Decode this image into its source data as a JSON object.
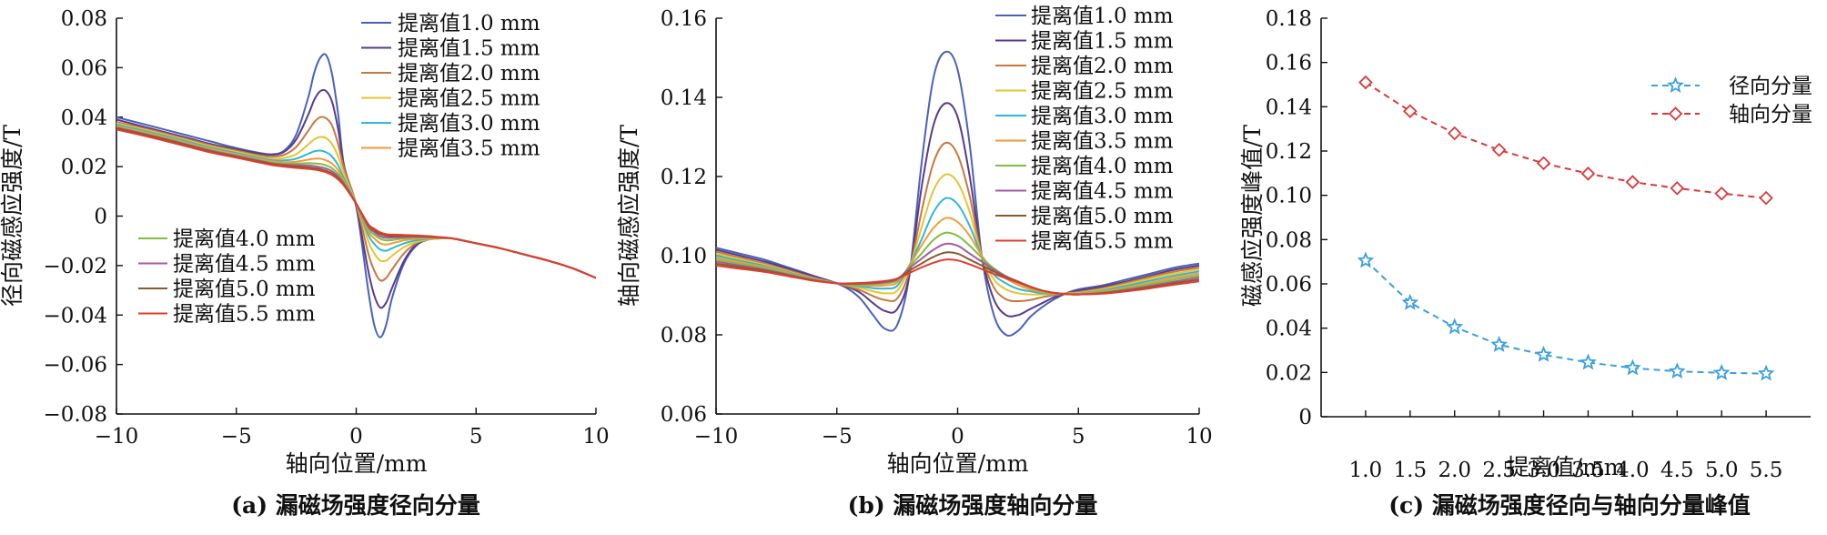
{
  "chart_data": [
    {
      "type": "line",
      "panel": "a",
      "caption": "(a) 漏磁场强度径向分量",
      "xlabel": "轴向位置/mm",
      "ylabel": "径向磁感应强度/T",
      "xlim": [
        -10,
        10
      ],
      "ylim": [
        -0.08,
        0.08
      ],
      "xticks": [
        -10,
        -5,
        0,
        5,
        10
      ],
      "xtick_labels": [
        "−10",
        "−5",
        "0",
        "5",
        "10"
      ],
      "yticks": [
        -0.08,
        -0.06,
        -0.04,
        -0.02,
        0,
        0.02,
        0.04,
        0.06,
        0.08
      ],
      "ytick_labels": [
        "−0.08",
        "−0.06",
        "−0.04",
        "−0.02",
        "0",
        "0.02",
        "0.04",
        "0.06",
        "0.08"
      ],
      "legend_positions": [
        "top-right",
        "lower-left"
      ],
      "grid": false,
      "x": [
        -10,
        -9,
        -8,
        -7,
        -6,
        -5,
        -4,
        -3.5,
        -3,
        -2.5,
        -2,
        -1.75,
        -1.5,
        -1.25,
        -1,
        -0.75,
        -0.5,
        0,
        0.5,
        0.75,
        1,
        1.25,
        1.5,
        2,
        2.5,
        3,
        3.5,
        4,
        5,
        6,
        7,
        8,
        9,
        10
      ],
      "series": [
        {
          "name": "提离值1.0 mm",
          "color": "#4a62b8",
          "values": [
            0.04,
            0.0375,
            0.035,
            0.0325,
            0.03,
            0.0275,
            0.0255,
            0.025,
            0.0265,
            0.033,
            0.048,
            0.058,
            0.064,
            0.065,
            0.057,
            0.041,
            0.02,
            0.004,
            -0.03,
            -0.044,
            -0.049,
            -0.044,
            -0.033,
            -0.019,
            -0.012,
            -0.0095,
            -0.009,
            -0.009,
            -0.011,
            -0.013,
            -0.0155,
            -0.018,
            -0.021,
            -0.025
          ]
        },
        {
          "name": "提离值1.5 mm",
          "color": "#5a3a8c",
          "values": [
            0.039,
            0.0365,
            0.034,
            0.0315,
            0.029,
            0.027,
            0.0252,
            0.0248,
            0.026,
            0.031,
            0.041,
            0.047,
            0.0505,
            0.0505,
            0.046,
            0.035,
            0.02,
            0.004,
            -0.022,
            -0.032,
            -0.037,
            -0.035,
            -0.029,
            -0.018,
            -0.0115,
            -0.0095,
            -0.009,
            -0.009,
            -0.011,
            -0.013,
            -0.0155,
            -0.018,
            -0.021,
            -0.025
          ]
        },
        {
          "name": "提离值2.0 mm",
          "color": "#c8783c",
          "values": [
            0.038,
            0.0358,
            0.0335,
            0.031,
            0.0285,
            0.0265,
            0.0245,
            0.024,
            0.0248,
            0.028,
            0.0345,
            0.038,
            0.04,
            0.0395,
            0.0365,
            0.029,
            0.019,
            0.005,
            -0.015,
            -0.022,
            -0.026,
            -0.025,
            -0.0215,
            -0.015,
            -0.011,
            -0.0095,
            -0.009,
            -0.009,
            -0.011,
            -0.013,
            -0.0155,
            -0.018,
            -0.021,
            -0.025
          ]
        },
        {
          "name": "提离值2.5 mm",
          "color": "#e6c531",
          "values": [
            0.0375,
            0.0353,
            0.033,
            0.0305,
            0.028,
            0.026,
            0.024,
            0.0232,
            0.0235,
            0.025,
            0.029,
            0.031,
            0.032,
            0.0315,
            0.029,
            0.024,
            0.017,
            0.005,
            -0.01,
            -0.015,
            -0.018,
            -0.018,
            -0.016,
            -0.0125,
            -0.0105,
            -0.0095,
            -0.009,
            -0.009,
            -0.011,
            -0.013,
            -0.0155,
            -0.018,
            -0.021,
            -0.025
          ]
        },
        {
          "name": "提离值3.0 mm",
          "color": "#2fb8d2",
          "values": [
            0.037,
            0.0348,
            0.0325,
            0.03,
            0.0275,
            0.0255,
            0.0235,
            0.0226,
            0.0225,
            0.0232,
            0.0252,
            0.0262,
            0.0265,
            0.0258,
            0.024,
            0.0205,
            0.015,
            0.005,
            -0.0075,
            -0.0112,
            -0.0135,
            -0.014,
            -0.013,
            -0.011,
            -0.0098,
            -0.0092,
            -0.009,
            -0.009,
            -0.011,
            -0.013,
            -0.0155,
            -0.018,
            -0.021,
            -0.025
          ]
        },
        {
          "name": "提离值3.5 mm",
          "color": "#f29a3a",
          "values": [
            0.0365,
            0.0343,
            0.032,
            0.0295,
            0.027,
            0.025,
            0.023,
            0.0221,
            0.0218,
            0.022,
            0.0228,
            0.0232,
            0.0232,
            0.0225,
            0.0212,
            0.0185,
            0.014,
            0.005,
            -0.006,
            -0.009,
            -0.011,
            -0.0115,
            -0.011,
            -0.0098,
            -0.0092,
            -0.009,
            -0.009,
            -0.009,
            -0.011,
            -0.013,
            -0.0155,
            -0.018,
            -0.021,
            -0.025
          ]
        },
        {
          "name": "提离值4.0 mm",
          "color": "#7fbf3f",
          "values": [
            0.036,
            0.0338,
            0.0315,
            0.029,
            0.0265,
            0.0245,
            0.0225,
            0.0216,
            0.0212,
            0.0212,
            0.0214,
            0.0213,
            0.0211,
            0.0205,
            0.0193,
            0.017,
            0.0135,
            0.005,
            -0.005,
            -0.0075,
            -0.0092,
            -0.0098,
            -0.0097,
            -0.009,
            -0.0087,
            -0.0087,
            -0.0088,
            -0.009,
            -0.011,
            -0.013,
            -0.0155,
            -0.018,
            -0.021,
            -0.025
          ]
        },
        {
          "name": "提离值4.5 mm",
          "color": "#a65a9e",
          "values": [
            0.0358,
            0.0336,
            0.0313,
            0.0288,
            0.0263,
            0.0243,
            0.0223,
            0.0213,
            0.0208,
            0.0206,
            0.0205,
            0.0202,
            0.0198,
            0.0192,
            0.0181,
            0.016,
            0.013,
            0.005,
            -0.0042,
            -0.0065,
            -0.0082,
            -0.0088,
            -0.0088,
            -0.0085,
            -0.0084,
            -0.0085,
            -0.0087,
            -0.009,
            -0.011,
            -0.013,
            -0.0155,
            -0.018,
            -0.021,
            -0.025
          ]
        },
        {
          "name": "提离值5.0 mm",
          "color": "#8b5a2b",
          "values": [
            0.0355,
            0.0333,
            0.031,
            0.0285,
            0.026,
            0.024,
            0.022,
            0.021,
            0.0204,
            0.02,
            0.0197,
            0.0194,
            0.019,
            0.0183,
            0.0172,
            0.0153,
            0.0125,
            0.005,
            -0.0036,
            -0.0057,
            -0.0073,
            -0.008,
            -0.0081,
            -0.008,
            -0.0081,
            -0.0083,
            -0.0086,
            -0.009,
            -0.011,
            -0.013,
            -0.0155,
            -0.018,
            -0.021,
            -0.025
          ]
        },
        {
          "name": "提离值5.5 mm",
          "color": "#e03c2e",
          "values": [
            0.035,
            0.0328,
            0.0305,
            0.028,
            0.0256,
            0.0236,
            0.0216,
            0.0206,
            0.02,
            0.0195,
            0.0191,
            0.0188,
            0.0184,
            0.0177,
            0.0166,
            0.0148,
            0.0122,
            0.005,
            -0.0032,
            -0.0051,
            -0.0066,
            -0.0073,
            -0.0075,
            -0.0076,
            -0.0078,
            -0.0081,
            -0.0085,
            -0.009,
            -0.011,
            -0.013,
            -0.0155,
            -0.018,
            -0.021,
            -0.025
          ]
        }
      ]
    },
    {
      "type": "line",
      "panel": "b",
      "caption": "(b) 漏磁场强度轴向分量",
      "xlabel": "轴向位置/mm",
      "ylabel": "轴向磁感应强度/T",
      "xlim": [
        -10,
        10
      ],
      "ylim": [
        0.06,
        0.16
      ],
      "xticks": [
        -10,
        -5,
        0,
        5,
        10
      ],
      "xtick_labels": [
        "−10",
        "−5",
        "0",
        "5",
        "10"
      ],
      "yticks": [
        0.06,
        0.08,
        0.1,
        0.12,
        0.14,
        0.16
      ],
      "ytick_labels": [
        "0.06",
        "0.08",
        "0.10",
        "0.12",
        "0.14",
        "0.16"
      ],
      "legend_position": "top-right",
      "grid": false,
      "x": [
        -10,
        -9,
        -8,
        -7,
        -6,
        -5,
        -4.5,
        -4,
        -3.5,
        -3,
        -2.5,
        -2,
        -1.5,
        -1,
        -0.5,
        0,
        0.5,
        1,
        1.5,
        2,
        2.5,
        3,
        3.5,
        4,
        4.5,
        5,
        6,
        7,
        8,
        9,
        10
      ],
      "series": [
        {
          "name": "提离值1.0 mm",
          "color": "#4a62b8",
          "values": [
            0.102,
            0.1005,
            0.099,
            0.097,
            0.095,
            0.093,
            0.0915,
            0.089,
            0.085,
            0.0815,
            0.0825,
            0.095,
            0.123,
            0.145,
            0.1515,
            0.147,
            0.128,
            0.1,
            0.085,
            0.08,
            0.081,
            0.0845,
            0.087,
            0.089,
            0.0905,
            0.0915,
            0.0925,
            0.094,
            0.0955,
            0.097,
            0.098
          ]
        },
        {
          "name": "提离值1.5 mm",
          "color": "#5a3a8c",
          "values": [
            0.1015,
            0.1,
            0.0985,
            0.0967,
            0.0948,
            0.093,
            0.092,
            0.0905,
            0.088,
            0.086,
            0.0865,
            0.095,
            0.117,
            0.133,
            0.1385,
            0.135,
            0.12,
            0.1,
            0.089,
            0.085,
            0.085,
            0.0865,
            0.088,
            0.0895,
            0.0905,
            0.0912,
            0.0922,
            0.0935,
            0.095,
            0.0965,
            0.0975
          ]
        },
        {
          "name": "提离值2.0 mm",
          "color": "#c8783c",
          "values": [
            0.101,
            0.0995,
            0.098,
            0.0963,
            0.0945,
            0.093,
            0.0922,
            0.0912,
            0.0898,
            0.0888,
            0.0892,
            0.096,
            0.111,
            0.1235,
            0.1285,
            0.1255,
            0.115,
            0.1,
            0.092,
            0.089,
            0.0885,
            0.0888,
            0.0895,
            0.09,
            0.0905,
            0.0908,
            0.0918,
            0.0932,
            0.0947,
            0.096,
            0.097
          ]
        },
        {
          "name": "提离值2.5 mm",
          "color": "#e6c531",
          "values": [
            0.1005,
            0.0991,
            0.0977,
            0.096,
            0.0943,
            0.093,
            0.0925,
            0.0918,
            0.091,
            0.0905,
            0.0912,
            0.097,
            0.107,
            0.1165,
            0.1205,
            0.1185,
            0.111,
            0.1,
            0.094,
            0.0915,
            0.0905,
            0.0902,
            0.0902,
            0.0903,
            0.0904,
            0.0906,
            0.0915,
            0.0928,
            0.0942,
            0.0955,
            0.0965
          ]
        },
        {
          "name": "提离值3.0 mm",
          "color": "#2fb8d2",
          "values": [
            0.1,
            0.0987,
            0.0974,
            0.0958,
            0.0942,
            0.093,
            0.0926,
            0.0922,
            0.0918,
            0.0917,
            0.0924,
            0.0975,
            0.104,
            0.111,
            0.1145,
            0.113,
            0.1075,
            0.1,
            0.0952,
            0.093,
            0.0916,
            0.091,
            0.0905,
            0.0904,
            0.0903,
            0.0904,
            0.0912,
            0.0924,
            0.0937,
            0.095,
            0.096
          ]
        },
        {
          "name": "提离值3.5 mm",
          "color": "#f29a3a",
          "values": [
            0.0995,
            0.0983,
            0.0971,
            0.0956,
            0.0941,
            0.093,
            0.0927,
            0.0925,
            0.0924,
            0.0925,
            0.0932,
            0.0975,
            0.1025,
            0.107,
            0.1095,
            0.1085,
            0.105,
            0.1,
            0.0962,
            0.0942,
            0.0926,
            0.0915,
            0.0908,
            0.0905,
            0.0903,
            0.0903,
            0.091,
            0.092,
            0.0932,
            0.0945,
            0.0955
          ]
        },
        {
          "name": "提离值4.0 mm",
          "color": "#7fbf3f",
          "values": [
            0.099,
            0.0979,
            0.0968,
            0.0954,
            0.094,
            0.093,
            0.0928,
            0.0927,
            0.0928,
            0.093,
            0.0937,
            0.0972,
            0.1005,
            0.104,
            0.1058,
            0.105,
            0.1025,
            0.0995,
            0.0968,
            0.0948,
            0.0932,
            0.092,
            0.091,
            0.0906,
            0.0903,
            0.0902,
            0.0908,
            0.0917,
            0.0928,
            0.094,
            0.095
          ]
        },
        {
          "name": "提离值4.5 mm",
          "color": "#a65a9e",
          "values": [
            0.0985,
            0.0975,
            0.0965,
            0.0952,
            0.0939,
            0.093,
            0.0929,
            0.0929,
            0.093,
            0.0933,
            0.094,
            0.0968,
            0.0992,
            0.1015,
            0.103,
            0.1025,
            0.1005,
            0.0985,
            0.0965,
            0.0948,
            0.0935,
            0.0922,
            0.0912,
            0.0906,
            0.0903,
            0.0902,
            0.0906,
            0.0914,
            0.0924,
            0.0935,
            0.0945
          ]
        },
        {
          "name": "提离值5.0 mm",
          "color": "#8b5a2b",
          "values": [
            0.098,
            0.0971,
            0.0962,
            0.095,
            0.0938,
            0.093,
            0.0929,
            0.093,
            0.0932,
            0.0935,
            0.0942,
            0.0962,
            0.098,
            0.0997,
            0.1008,
            0.1005,
            0.099,
            0.0975,
            0.096,
            0.0946,
            0.0934,
            0.0922,
            0.0912,
            0.0906,
            0.0903,
            0.0902,
            0.0905,
            0.0912,
            0.0921,
            0.0931,
            0.094
          ]
        },
        {
          "name": "提离值5.5 mm",
          "color": "#e03c2e",
          "values": [
            0.0975,
            0.0967,
            0.0959,
            0.0948,
            0.0937,
            0.093,
            0.093,
            0.0931,
            0.0933,
            0.0936,
            0.0942,
            0.0956,
            0.097,
            0.0982,
            0.099,
            0.0988,
            0.0978,
            0.0966,
            0.0954,
            0.0943,
            0.0932,
            0.0921,
            0.0912,
            0.0906,
            0.0903,
            0.0902,
            0.0904,
            0.091,
            0.0918,
            0.0927,
            0.0935
          ]
        }
      ]
    },
    {
      "type": "line",
      "panel": "c",
      "caption": "(c) 漏磁场强度径向与轴向分量峰值",
      "xlabel": "提离值/mm",
      "ylabel": "磁感应强度峰值/T",
      "xlim": [
        0.5,
        6.0
      ],
      "ylim": [
        0,
        0.18
      ],
      "xticks": [
        1.0,
        1.5,
        2.0,
        2.5,
        3.0,
        3.5,
        4.0,
        4.5,
        5.0,
        5.5
      ],
      "xtick_labels": [
        "1.0",
        "1.5",
        "2.0",
        "2.5",
        "3.0",
        "3.5",
        "4.0",
        "4.5",
        "5.0",
        "5.5"
      ],
      "yticks": [
        0,
        0.02,
        0.04,
        0.06,
        0.08,
        0.1,
        0.12,
        0.14,
        0.16,
        0.18
      ],
      "ytick_labels": [
        "0",
        "0.02",
        "0.04",
        "0.06",
        "0.08",
        "0.10",
        "0.12",
        "0.14",
        "0.16",
        "0.18"
      ],
      "legend_position": "top-right",
      "grid": false,
      "x": [
        1.0,
        1.5,
        2.0,
        2.5,
        3.0,
        3.5,
        4.0,
        4.5,
        5.0,
        5.5
      ],
      "series": [
        {
          "name": "径向分量",
          "color": "#3aa0dc",
          "marker": "star",
          "linestyle": "dashed",
          "values": [
            0.0705,
            0.0515,
            0.0405,
            0.0325,
            0.028,
            0.0245,
            0.022,
            0.0205,
            0.0198,
            0.0195
          ]
        },
        {
          "name": "轴向分量",
          "color": "#d83a3a",
          "marker": "diamond",
          "linestyle": "dashed",
          "values": [
            0.151,
            0.138,
            0.128,
            0.1205,
            0.1145,
            0.1098,
            0.106,
            0.1032,
            0.1008,
            0.0988
          ]
        }
      ]
    }
  ]
}
